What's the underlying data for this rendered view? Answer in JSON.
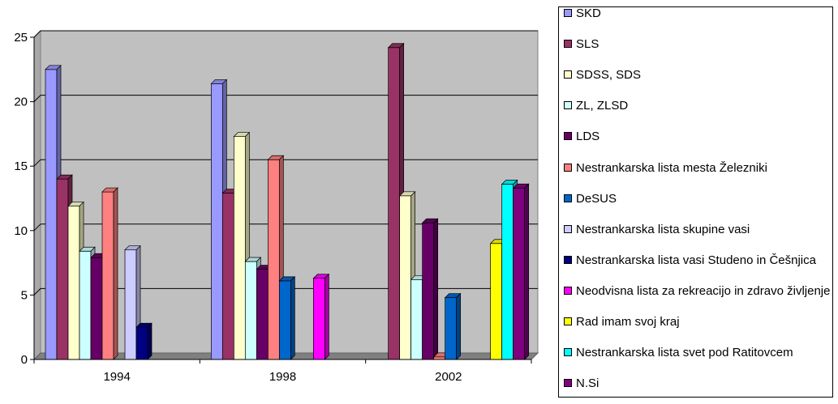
{
  "chart_data": {
    "type": "bar",
    "categories": [
      "1994",
      "1998",
      "2002"
    ],
    "ylim": [
      0,
      25
    ],
    "yticks": [
      0,
      5,
      10,
      15,
      20,
      25
    ],
    "grid": true,
    "legend_position": "right",
    "series": [
      {
        "name": "SKD",
        "color": "#9999ff",
        "values": [
          22.5,
          21.4,
          null
        ]
      },
      {
        "name": "SLS",
        "color": "#993366",
        "values": [
          14.0,
          12.9,
          24.2
        ]
      },
      {
        "name": "SDSS, SDS",
        "color": "#ffffcc",
        "values": [
          11.9,
          17.3,
          12.7
        ]
      },
      {
        "name": "ZL, ZLSD",
        "color": "#ccffff",
        "values": [
          8.4,
          7.6,
          6.2
        ]
      },
      {
        "name": "LDS",
        "color": "#660066",
        "values": [
          7.9,
          7.0,
          10.6
        ]
      },
      {
        "name": "Nestrankarska lista mesta Železniki",
        "color": "#ff8080",
        "values": [
          13.0,
          15.5,
          0.2
        ]
      },
      {
        "name": "DeSUS",
        "color": "#0066cc",
        "values": [
          null,
          6.1,
          4.8
        ]
      },
      {
        "name": "Nestrankarska lista skupine vasi",
        "color": "#ccccff",
        "values": [
          8.5,
          null,
          null
        ]
      },
      {
        "name": "Nestrankarska lista vasi Studeno in Češnjica",
        "color": "#000080",
        "values": [
          2.5,
          null,
          null
        ]
      },
      {
        "name": "Neodvisna lista za rekreacijo in zdravo življenje",
        "color": "#ff00ff",
        "values": [
          null,
          6.3,
          null
        ]
      },
      {
        "name": "Rad imam svoj kraj",
        "color": "#ffff00",
        "values": [
          null,
          null,
          9.0
        ]
      },
      {
        "name": "Nestrankarska lista svet pod Ratitovcem",
        "color": "#00ffff",
        "values": [
          null,
          null,
          13.6
        ]
      },
      {
        "name": "N.Si",
        "color": "#800080",
        "values": [
          null,
          null,
          13.3
        ]
      }
    ]
  }
}
